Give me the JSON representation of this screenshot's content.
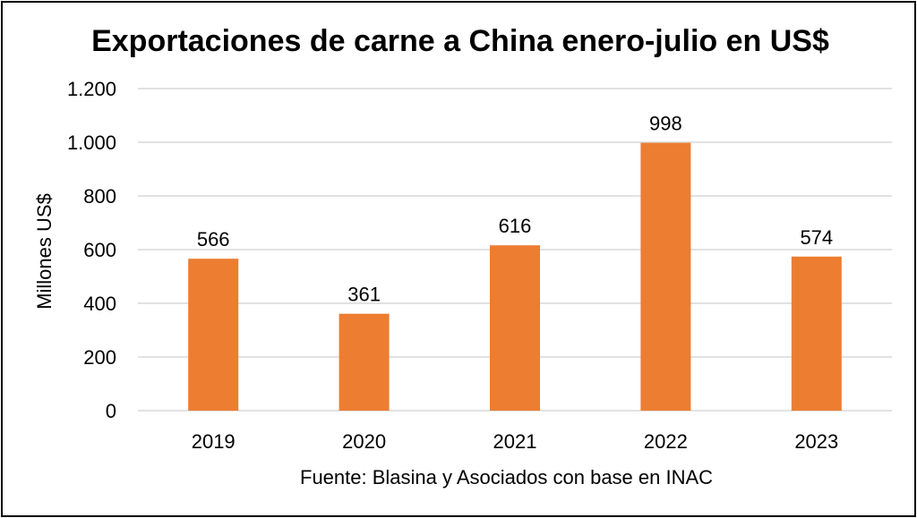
{
  "chart_data": {
    "type": "bar",
    "title": "Exportaciones de carne a China enero-julio en US$",
    "xlabel": "",
    "ylabel": "Millones US$",
    "categories": [
      "2019",
      "2020",
      "2021",
      "2022",
      "2023"
    ],
    "values": [
      566,
      361,
      616,
      998,
      574
    ],
    "data_labels": [
      "566",
      "361",
      "616",
      "998",
      "574"
    ],
    "yticks": [
      0,
      200,
      400,
      600,
      800,
      1000,
      1200
    ],
    "ytick_labels": [
      "0",
      "200",
      "400",
      "600",
      "800",
      "1.000",
      "1.200"
    ],
    "ylim": [
      0,
      1200
    ],
    "grid": true,
    "legend": "none",
    "bar_color": "#ED7D31",
    "gridline_color": "#D9D9D9",
    "source": "Fuente: Blasina y Asociados con base en INAC"
  }
}
